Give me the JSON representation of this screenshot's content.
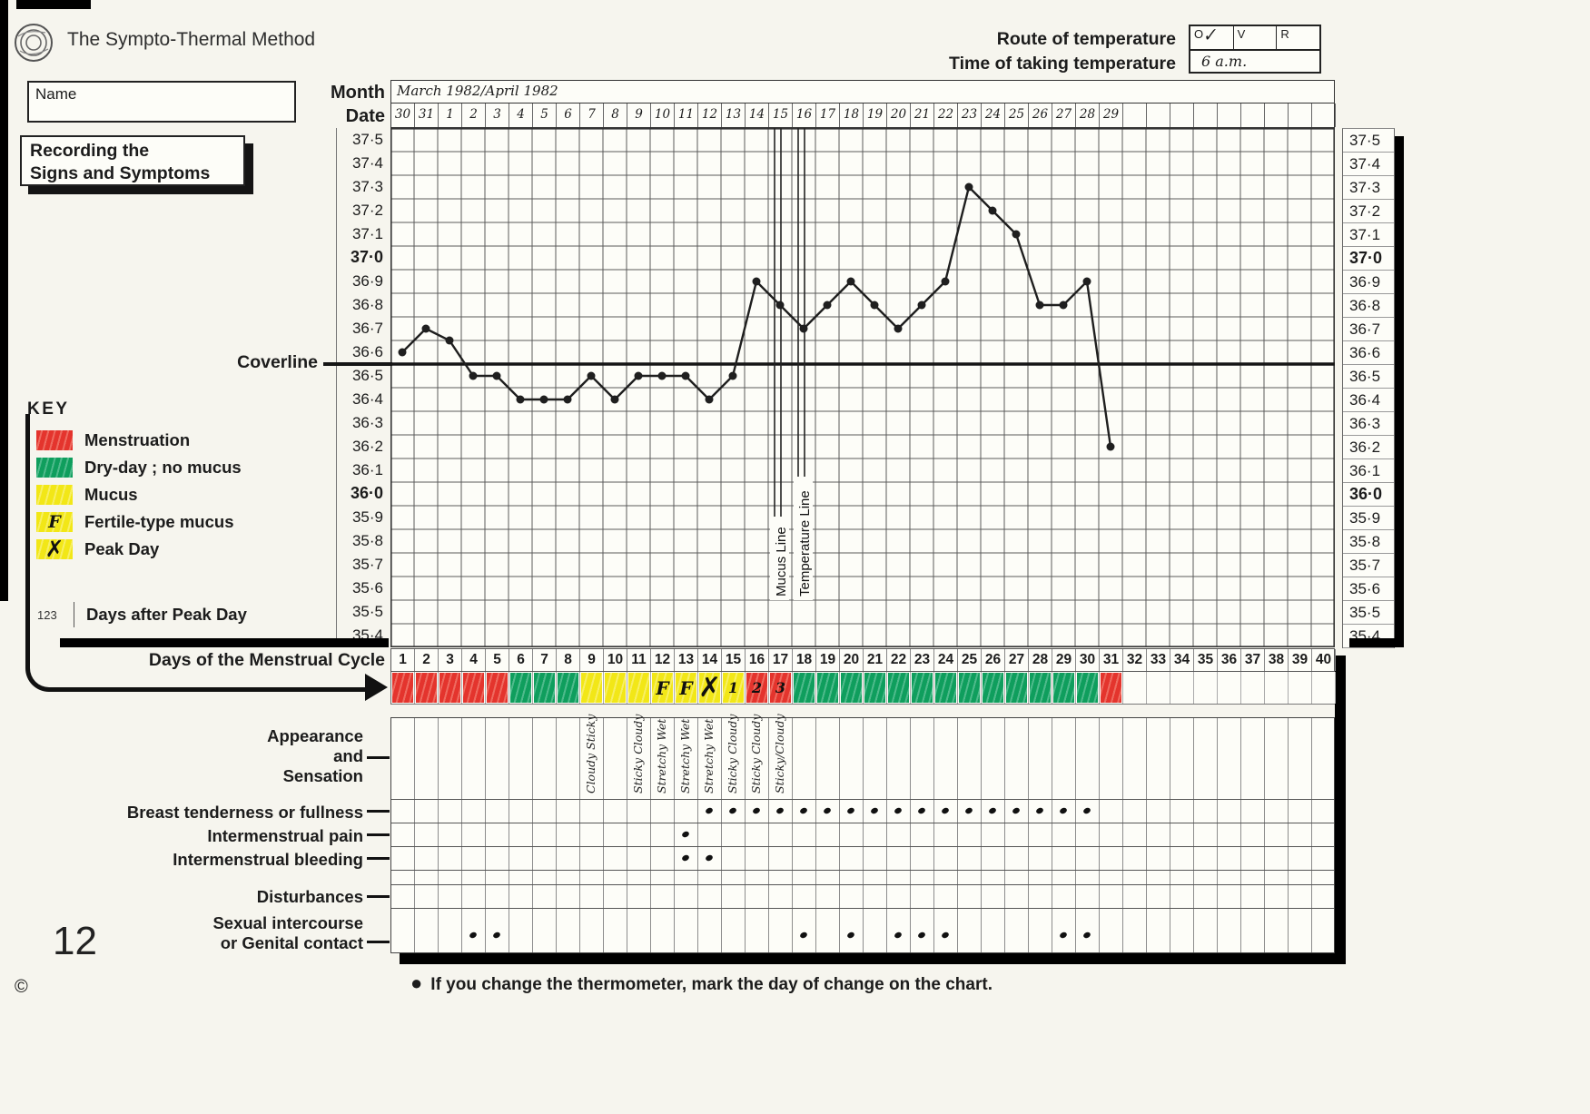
{
  "header": {
    "title": "The Sympto-Thermal Method",
    "route_label": "Route of temperature",
    "time_label": "Time of taking temperature",
    "route_cells": [
      "O",
      "V",
      "R"
    ],
    "check_mark": "✓",
    "time_value": "6 a.m."
  },
  "name_box": {
    "label": "Name",
    "value": ""
  },
  "recording_box": {
    "line1": "Recording the",
    "line2": "Signs and Symptoms"
  },
  "chart_header": {
    "month_label": "Month",
    "date_label": "Date",
    "month_value": "March 1982/April 1982"
  },
  "dates": [
    "30",
    "31",
    "1",
    "2",
    "3",
    "4",
    "5",
    "6",
    "7",
    "8",
    "9",
    "10",
    "11",
    "12",
    "13",
    "14",
    "15",
    "16",
    "17",
    "18",
    "19",
    "20",
    "21",
    "22",
    "23",
    "24",
    "25",
    "26",
    "27",
    "28",
    "29"
  ],
  "coverline_label": "Coverline",
  "key": {
    "title": "KEY",
    "items": [
      {
        "color": "red",
        "mark": "",
        "label": "Menstruation"
      },
      {
        "color": "green",
        "mark": "",
        "label": "Dry-day ; no mucus"
      },
      {
        "color": "yellow",
        "mark": "",
        "label": "Mucus"
      },
      {
        "color": "yellow",
        "mark": "F",
        "label": "Fertile-type mucus"
      },
      {
        "color": "yellow",
        "mark": "✗",
        "label": "Peak Day"
      },
      {
        "color": "none",
        "mark": "123",
        "label": "Days after Peak Day"
      }
    ]
  },
  "cycle_row_label": "Days of the Menstrual Cycle",
  "chart_data": {
    "type": "line",
    "title": "Basal body temperature, cycle days 1-31 (March 1982/April 1982)",
    "x_days": [
      1,
      2,
      3,
      4,
      5,
      6,
      7,
      8,
      9,
      10,
      11,
      12,
      13,
      14,
      15,
      16,
      17,
      18,
      19,
      20,
      21,
      22,
      23,
      24,
      25,
      26,
      27,
      28,
      29,
      30,
      31
    ],
    "temperatures": [
      36.6,
      36.7,
      36.65,
      36.5,
      36.5,
      36.4,
      36.4,
      36.4,
      36.5,
      36.4,
      36.5,
      36.5,
      36.5,
      36.4,
      36.5,
      36.9,
      36.8,
      36.7,
      36.8,
      36.9,
      36.8,
      36.7,
      36.8,
      36.9,
      37.3,
      37.2,
      37.1,
      36.8,
      36.8,
      36.9,
      36.2
    ],
    "ylim": [
      35.4,
      37.5
    ],
    "ytick_step": 0.1,
    "total_day_columns": 40,
    "coverline": 36.6,
    "mucus_line_day": 17,
    "mucus_line_label": "Mucus Line",
    "temperature_line_day": 18,
    "temperature_line_label": "Temperature Line",
    "day_colors": [
      "red",
      "red",
      "red",
      "red",
      "red",
      "green",
      "green",
      "green",
      "yellow",
      "yellow",
      "yellow",
      "yellow",
      "yellow",
      "yellow",
      "yellow",
      "red",
      "red",
      "green",
      "green",
      "green",
      "green",
      "green",
      "green",
      "green",
      "green",
      "green",
      "green",
      "green",
      "green",
      "green",
      "red"
    ],
    "day_marks": {
      "12": "F",
      "13": "F",
      "14": "✗",
      "15": "1",
      "16": "2",
      "17": "3"
    },
    "appearance": {
      "9": "Cloudy Sticky",
      "11": "Sticky Cloudy",
      "12": "Stretchy Wet",
      "13": "Stretchy Wet",
      "14": "Stretchy Wet",
      "15": "Sticky Cloudy",
      "16": "Sticky Cloudy",
      "17": "Sticky/Cloudy"
    },
    "breast_tenderness_days": [
      14,
      15,
      16,
      17,
      18,
      19,
      20,
      21,
      22,
      23,
      24,
      25,
      26,
      27,
      28,
      29,
      30
    ],
    "intermenstrual_pain_days": [
      13
    ],
    "intermenstrual_bleeding_days": [
      13,
      14
    ],
    "disturbances_days": [],
    "intercourse_days": [
      4,
      5,
      18,
      20,
      22,
      23,
      24,
      29,
      30
    ]
  },
  "bottom_rows": {
    "appearance_1": "Appearance",
    "appearance_2": "and",
    "appearance_3": "Sensation",
    "breast": "Breast tenderness or fullness",
    "pain": "Intermenstrual pain",
    "bleeding": "Intermenstrual bleeding",
    "disturbances": "Disturbances",
    "intercourse_1": "Sexual intercourse",
    "intercourse_2": "or Genital contact"
  },
  "footer": {
    "page_number": "12",
    "copyright": "©",
    "bullet": "●",
    "note": "If you change the thermometer, mark the day of change on the chart."
  }
}
